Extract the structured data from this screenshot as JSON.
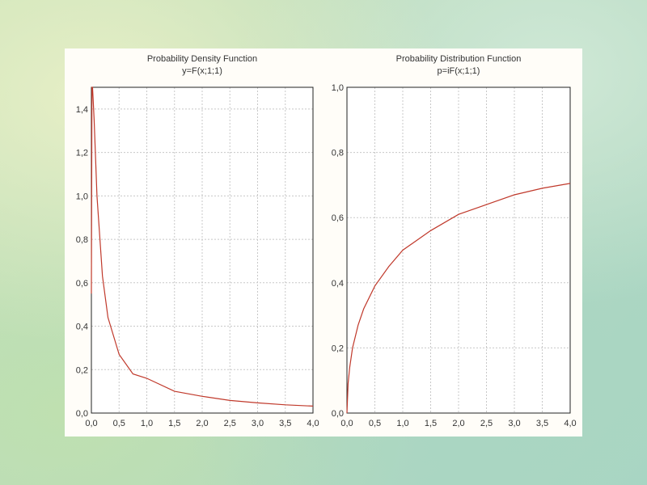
{
  "chart_data": [
    {
      "type": "line",
      "title": "Probability Density Function",
      "subtitle": "y=F(x;1;1)",
      "xlim": [
        0,
        4
      ],
      "ylim": [
        0,
        1.5
      ],
      "xticks": [
        "0,0",
        "0,5",
        "1,0",
        "1,5",
        "2,0",
        "2,5",
        "3,0",
        "3,5",
        "4,0"
      ],
      "yticks": [
        "0,0",
        "0,2",
        "0,4",
        "0,6",
        "0,8",
        "1,0",
        "1,2",
        "1,4"
      ],
      "grid": true,
      "line_color": "#c0392b",
      "series": [
        {
          "x": [
            0.02,
            0.03,
            0.05,
            0.1,
            0.2,
            0.3,
            0.5,
            0.75,
            1.0,
            1.5,
            2.0,
            2.5,
            3.0,
            3.5,
            4.0
          ],
          "y": [
            1.5,
            1.45,
            1.35,
            1.0,
            0.63,
            0.44,
            0.27,
            0.18,
            0.16,
            0.1,
            0.077,
            0.058,
            0.047,
            0.038,
            0.032
          ]
        }
      ]
    },
    {
      "type": "line",
      "title": "Probability Distribution Function",
      "subtitle": "p=iF(x;1;1)",
      "xlim": [
        0,
        4
      ],
      "ylim": [
        0,
        1
      ],
      "xticks": [
        "0,0",
        "0,5",
        "1,0",
        "1,5",
        "2,0",
        "2,5",
        "3,0",
        "3,5",
        "4,0"
      ],
      "yticks": [
        "0,0",
        "0,2",
        "0,4",
        "0,6",
        "0,8",
        "1,0"
      ],
      "grid": true,
      "line_color": "#c0392b",
      "series": [
        {
          "x": [
            0,
            0.02,
            0.05,
            0.1,
            0.2,
            0.3,
            0.5,
            0.75,
            1.0,
            1.5,
            2.0,
            2.5,
            3.0,
            3.5,
            4.0
          ],
          "y": [
            0,
            0.09,
            0.14,
            0.2,
            0.27,
            0.32,
            0.39,
            0.45,
            0.5,
            0.56,
            0.61,
            0.64,
            0.67,
            0.69,
            0.705
          ]
        }
      ]
    }
  ]
}
